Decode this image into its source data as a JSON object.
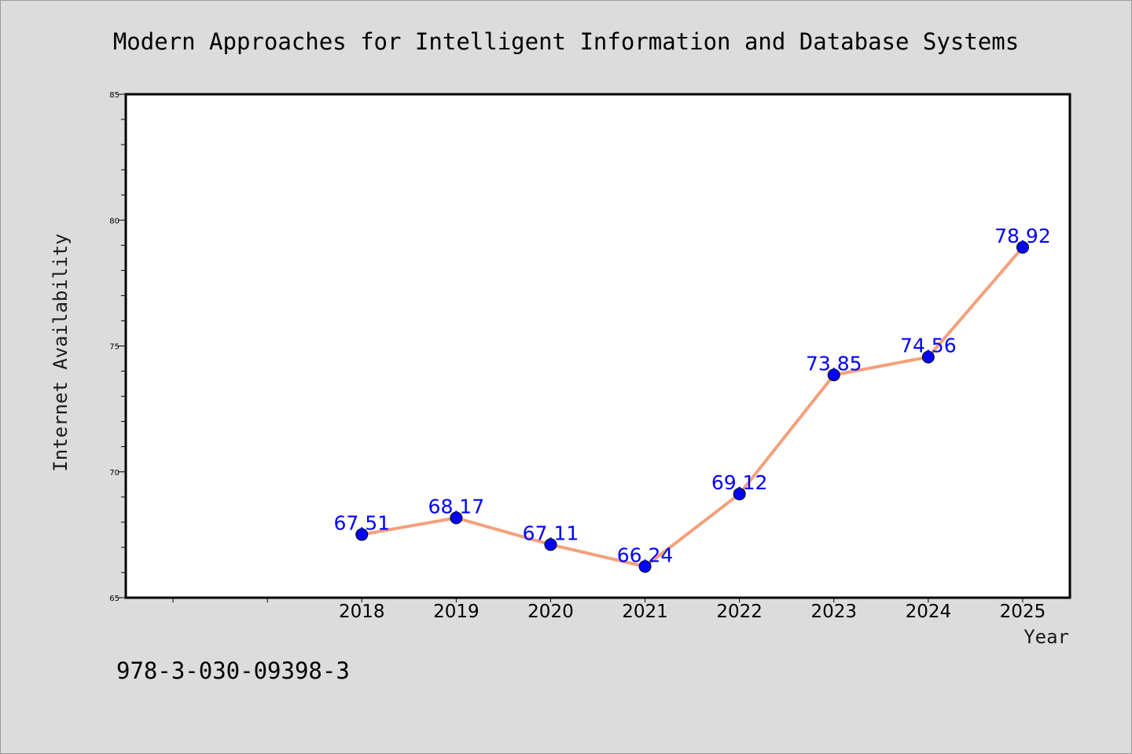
{
  "chart_data": {
    "type": "line",
    "title": "Modern Approaches for Intelligent Information and Database Systems",
    "xlabel": "Year",
    "ylabel": "Internet Availability",
    "categories": [
      "2018",
      "2019",
      "2020",
      "2021",
      "2022",
      "2023",
      "2024",
      "2025"
    ],
    "series": [
      {
        "values": [
          67.51,
          68.17,
          67.11,
          66.24,
          69.12,
          73.85,
          74.56,
          78.92
        ]
      }
    ],
    "ylim": [
      65,
      85
    ],
    "yticks": [
      "65",
      "70",
      "75",
      "80",
      "85"
    ],
    "grid": false,
    "line_color": "#f4a07c",
    "marker_color": "#0000ff",
    "label_color": "#0000ff"
  },
  "footer": {
    "isbn": "978-3-030-09398-3"
  }
}
